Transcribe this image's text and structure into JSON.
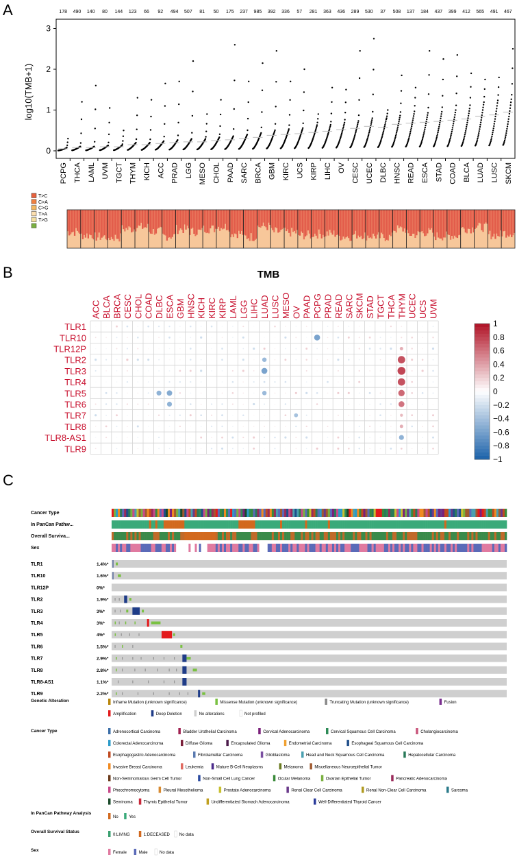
{
  "panel_labels": {
    "a": "A",
    "b": "B",
    "c": "C"
  },
  "panel_a": {
    "ylabel": "log10(TMB+1)",
    "y_ticks": [
      "0",
      "1",
      "2",
      "3"
    ],
    "cancers": [
      "PCPG",
      "THCA",
      "LAML",
      "UVM",
      "TGCT",
      "THYM",
      "KICH",
      "ACC",
      "PRAD",
      "LGG",
      "MESO",
      "CHOL",
      "PAAD",
      "SARC",
      "BRCA",
      "GBM",
      "KIRC",
      "UCS",
      "KIRP",
      "LIHC",
      "OV",
      "CESC",
      "UCEC",
      "DLBC",
      "HNSC",
      "READ",
      "ESCA",
      "STAD",
      "COAD",
      "BLCA",
      "LUAD",
      "LUSC",
      "SKCM"
    ],
    "counts": [
      "178",
      "490",
      "140",
      "80",
      "144",
      "123",
      "66",
      "92",
      "494",
      "507",
      "81",
      "50",
      "175",
      "237",
      "985",
      "392",
      "336",
      "57",
      "281",
      "363",
      "436",
      "289",
      "530",
      "37",
      "508",
      "137",
      "184",
      "437",
      "399",
      "412",
      "565",
      "491",
      "467"
    ],
    "medians": [
      0.05,
      0.08,
      0.08,
      0.1,
      0.1,
      0.15,
      0.15,
      0.18,
      0.2,
      0.22,
      0.22,
      0.25,
      0.27,
      0.3,
      0.33,
      0.38,
      0.4,
      0.42,
      0.45,
      0.48,
      0.52,
      0.55,
      0.6,
      0.58,
      0.65,
      0.68,
      0.7,
      0.72,
      0.75,
      0.78,
      0.85,
      0.88,
      0.95
    ],
    "maxes": [
      0.3,
      1.2,
      1.6,
      1.05,
      0.5,
      1.3,
      1.25,
      1.65,
      1.7,
      2.2,
      0.9,
      1.25,
      2.6,
      1.7,
      2.15,
      2.45,
      1.7,
      2.0,
      0.9,
      1.55,
      1.5,
      2.45,
      2.75,
      1.0,
      1.85,
      1.55,
      2.45,
      2.25,
      2.35,
      1.9,
      1.75,
      1.8,
      2.5
    ],
    "mutation_legend": [
      "T>C",
      "C>A",
      "C>G",
      "T>A",
      "T>G",
      ""
    ]
  },
  "panel_b": {
    "title": "TMB",
    "columns": [
      "ACC",
      "BLCA",
      "BRCA",
      "CESC",
      "CHOL",
      "COAD",
      "DLBC",
      "ESCA",
      "GBM",
      "HNSC",
      "KICH",
      "KIRC",
      "KIRP",
      "LAML",
      "LGG",
      "LIHC",
      "LUAD",
      "LUSC",
      "MESO",
      "OV",
      "PAAD",
      "PCPG",
      "PRAD",
      "READ",
      "SARC",
      "SKCM",
      "STAD",
      "TGCT",
      "THCA",
      "THYM",
      "UCEC",
      "UCS",
      "UVM"
    ],
    "rows": [
      "TLR1",
      "TLR10",
      "TLR12P",
      "TLR2",
      "TLR3",
      "TLR4",
      "TLR5",
      "TLR6",
      "TLR7",
      "TLR8",
      "TLR8-AS1",
      "TLR9"
    ],
    "colorbar_ticks": [
      "1",
      "0.8",
      "0.6",
      "0.4",
      "0.2",
      "0",
      "−0.2",
      "−0.4",
      "−0.6",
      "−0.8",
      "−1"
    ]
  },
  "panel_c": {
    "track_labels": [
      "Cancer Type",
      "In PanCan Pathw...",
      "Overall Surviva...",
      "Sex"
    ],
    "genes": [
      {
        "name": "TLR1",
        "pct": "1.4%*"
      },
      {
        "name": "TLR10",
        "pct": "1.6%*"
      },
      {
        "name": "TLR12P",
        "pct": "0%*"
      },
      {
        "name": "TLR2",
        "pct": "1.9%*"
      },
      {
        "name": "TLR3",
        "pct": "3%*"
      },
      {
        "name": "TLR4",
        "pct": "3%*"
      },
      {
        "name": "TLR5",
        "pct": "4%*"
      },
      {
        "name": "TLR6",
        "pct": "1.5%*"
      },
      {
        "name": "TLR7",
        "pct": "2.9%*"
      },
      {
        "name": "TLR8",
        "pct": "2.8%*"
      },
      {
        "name": "TLR8-AS1",
        "pct": "1.1%*"
      },
      {
        "name": "TLR9",
        "pct": "2.2%*"
      }
    ],
    "legend": {
      "genetic_alteration": {
        "title": "Genetic Alteration",
        "row1": [
          {
            "label": "Inframe Mutation (unknown significance)",
            "color": "#b8860b"
          },
          {
            "label": "Missense Mutation (unknown significance)",
            "color": "#7ac142"
          },
          {
            "label": "Truncating Mutation (unknown significance)",
            "color": "#888888"
          },
          {
            "label": "Fusion",
            "color": "#7a2f8f"
          }
        ],
        "row2": [
          {
            "label": "Amplification",
            "color": "#e31a1c"
          },
          {
            "label": "Deep Deletion",
            "color": "#1f3c88"
          },
          {
            "label": "No alterations",
            "color": "#cfcfcf"
          },
          {
            "label": "Not profiled",
            "color": "#ffffff"
          }
        ]
      },
      "cancer_type": {
        "title": "Cancer Type",
        "rows": [
          [
            {
              "label": "Adrenocortical Carcinoma",
              "color": "#3b6ea8"
            },
            {
              "label": "Bladder Urothelial Carcinoma",
              "color": "#a02050"
            },
            {
              "label": "Cervical Adenocarcinoma",
              "color": "#7a1f7a"
            },
            {
              "label": "Cervical Squamous Cell Carcinoma",
              "color": "#2e8b57"
            },
            {
              "label": "Cholangiocarcinoma",
              "color": "#c8557a"
            }
          ],
          [
            {
              "label": "Colorectal Adenocarcinoma",
              "color": "#2b9bc9"
            },
            {
              "label": "Diffuse Glioma",
              "color": "#7a1f3a"
            },
            {
              "label": "Encapsulated Glioma",
              "color": "#4b1a4a"
            },
            {
              "label": "Endometrial Carcinoma",
              "color": "#f0a030"
            },
            {
              "label": "Esophageal Squamous Cell Carcinoma",
              "color": "#1f4e8a"
            }
          ],
          [
            {
              "label": "Esophagogastric Adenocarcinoma",
              "color": "#c04a20"
            },
            {
              "label": "Fibrolamellar Carcinoma",
              "color": "#5a7ab0"
            },
            {
              "label": "Glioblastoma",
              "color": "#7a4fa0"
            },
            {
              "label": "Head and Neck Squamous Cell Carcinoma",
              "color": "#4aa0b0"
            },
            {
              "label": "Hepatocellular Carcinoma",
              "color": "#2a7a5a"
            }
          ],
          [
            {
              "label": "Invasive Breast Carcinoma",
              "color": "#f08a20"
            },
            {
              "label": "Leukemia",
              "color": "#e06a60"
            },
            {
              "label": "Mature B-Cell Neoplasms",
              "color": "#4a2a8a"
            },
            {
              "label": "Melanoma",
              "color": "#6a7a20"
            },
            {
              "label": "Miscellaneous Neuroepithelial Tumor",
              "color": "#a05a30"
            }
          ],
          [
            {
              "label": "Non-Seminomatous Germ Cell Tumor",
              "color": "#6a3a1a"
            },
            {
              "label": "Non-Small Cell Lung Cancer",
              "color": "#2a4aa0"
            },
            {
              "label": "Ocular Melanoma",
              "color": "#3a8a3a"
            },
            {
              "label": "Ovarian Epithelial Tumor",
              "color": "#7ab040"
            },
            {
              "label": "Pancreatic Adenocarcinoma",
              "color": "#9a2a5a"
            }
          ],
          [
            {
              "label": "Pheochromocytoma",
              "color": "#c84a8a"
            },
            {
              "label": "Pleural Mesothelioma",
              "color": "#d88a30"
            },
            {
              "label": "Prostate Adenocarcinoma",
              "color": "#c8c030"
            },
            {
              "label": "Renal Clear Cell Carcinoma",
              "color": "#6a3a8a"
            },
            {
              "label": "Renal Non-Clear Cell Carcinoma",
              "color": "#b09a20"
            },
            {
              "label": "Sarcoma",
              "color": "#2a7a8a"
            }
          ],
          [
            {
              "label": "Seminoma",
              "color": "#1a4a2a"
            },
            {
              "label": "Thymic Epithelial Tumor",
              "color": "#c8283a"
            },
            {
              "label": "Undifferentiated Stomach Adenocarcinoma",
              "color": "#c0a020"
            },
            {
              "label": "Well-Differentiated Thyroid Cancer",
              "color": "#2a3a9a"
            }
          ]
        ]
      },
      "pathway": {
        "title": "In PanCan Pathway Analysis",
        "items": [
          {
            "label": "No",
            "color": "#d2691e"
          },
          {
            "label": "Yes",
            "color": "#3aaa7a"
          }
        ]
      },
      "survival": {
        "title": "Overall Survival Status",
        "items": [
          {
            "label": "0:LIVING",
            "color": "#3aa070"
          },
          {
            "label": "1:DECEASED",
            "color": "#d2691e"
          },
          {
            "label": "No data",
            "color": "#ffffff"
          }
        ]
      },
      "sex": {
        "title": "Sex",
        "items": [
          {
            "label": "Female",
            "color": "#e07aa0"
          },
          {
            "label": "Male",
            "color": "#5a6ab8"
          },
          {
            "label": "No data",
            "color": "#ffffff"
          }
        ]
      }
    }
  },
  "colors": {
    "missense": "#7ac142",
    "amplification": "#e31a1c",
    "deep_deletion": "#1f3c88",
    "truncating": "#888888",
    "no_alteration": "#cfcfcf",
    "pos": "#b2182b",
    "neg": "#2166ac"
  }
}
